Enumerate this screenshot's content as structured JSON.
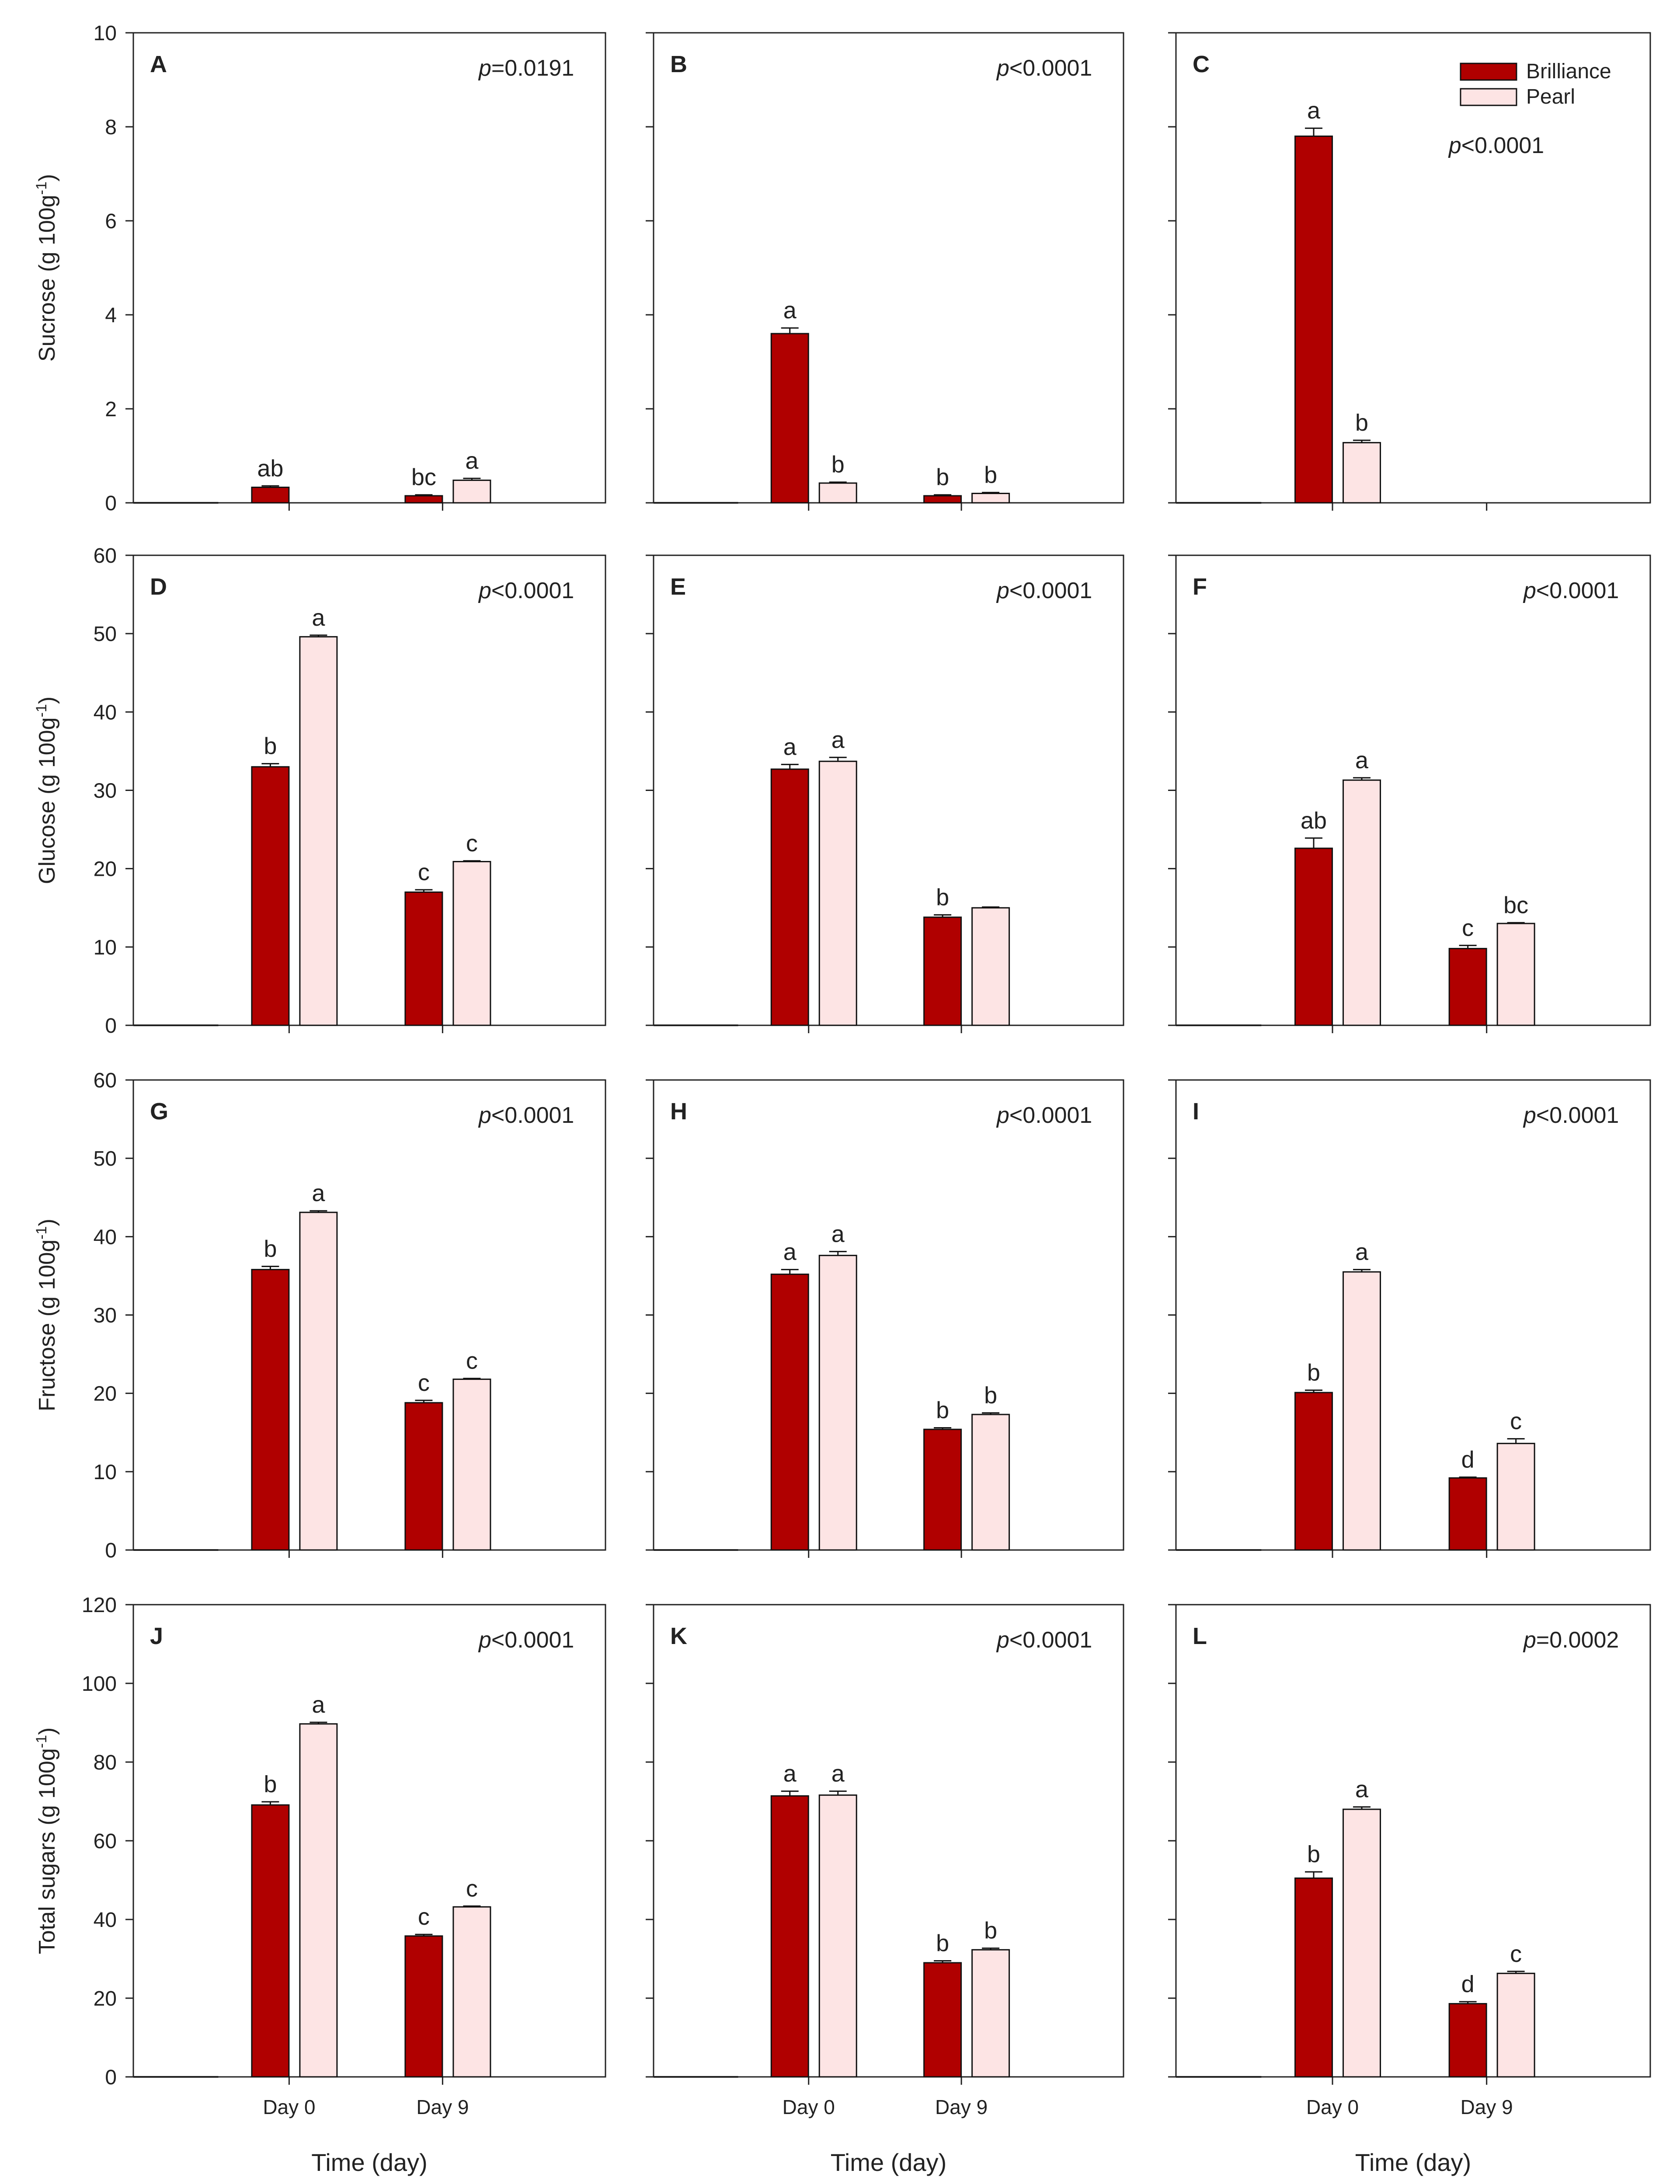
{
  "colors": {
    "brilliance": "#B00000",
    "pearl": "#FDE4E4",
    "axis": "#222222",
    "text": "#222222"
  },
  "legend": {
    "brilliance": "Brilliance",
    "pearl": "Pearl"
  },
  "x_axis": {
    "title": "Time (day)",
    "ticks": [
      "Day 0",
      "Day 9"
    ]
  },
  "rows": [
    {
      "ylabel_text": "Sucrose (g 100g",
      "ylabel_sup": "-1",
      "ylabel_end": ")",
      "ymax": 10,
      "ystep": 2
    },
    {
      "ylabel_text": "Glucose (g 100g",
      "ylabel_sup": "-1",
      "ylabel_end": ")",
      "ymax": 60,
      "ystep": 10
    },
    {
      "ylabel_text": "Fructose (g 100g",
      "ylabel_sup": "-1",
      "ylabel_end": ")",
      "ymax": 60,
      "ystep": 10
    },
    {
      "ylabel_text": "Total sugars (g 100g",
      "ylabel_sup": "-1",
      "ylabel_end": ")",
      "ymax": 120,
      "ystep": 20
    }
  ],
  "chart_data": [
    {
      "type": "bar",
      "panel": "A",
      "p_label": "p",
      "p_value": "=0.0191",
      "categories": [
        "Day 0",
        "Day 9"
      ],
      "ylim": [
        0,
        10
      ],
      "series": [
        {
          "name": "Brilliance",
          "values": [
            0.33,
            0.15
          ],
          "errors": [
            0.03,
            0.02
          ],
          "letters": [
            "ab",
            "bc"
          ]
        },
        {
          "name": "Pearl",
          "values": [
            0,
            0.48
          ],
          "errors": [
            0,
            0.04
          ],
          "letters": [
            "",
            "a"
          ]
        }
      ]
    },
    {
      "type": "bar",
      "panel": "B",
      "p_label": "p",
      "p_value": "<0.0001",
      "categories": [
        "Day 0",
        "Day 9"
      ],
      "ylim": [
        0,
        10
      ],
      "series": [
        {
          "name": "Brilliance",
          "values": [
            3.6,
            0.15
          ],
          "errors": [
            0.12,
            0.02
          ],
          "letters": [
            "a",
            "b"
          ]
        },
        {
          "name": "Pearl",
          "values": [
            0.42,
            0.2
          ],
          "errors": [
            0.02,
            0.02
          ],
          "letters": [
            "b",
            "b"
          ]
        }
      ]
    },
    {
      "type": "bar",
      "panel": "C",
      "p_label": "p",
      "p_value": "<0.0001",
      "categories": [
        "Day 0",
        "Day 9"
      ],
      "ylim": [
        0,
        10
      ],
      "legend": true,
      "series": [
        {
          "name": "Brilliance",
          "values": [
            7.8,
            0
          ],
          "errors": [
            0.17,
            0
          ],
          "letters": [
            "a",
            ""
          ]
        },
        {
          "name": "Pearl",
          "values": [
            1.28,
            0
          ],
          "errors": [
            0.05,
            0
          ],
          "letters": [
            "b",
            ""
          ]
        }
      ]
    },
    {
      "type": "bar",
      "panel": "D",
      "p_label": "p",
      "p_value": "<0.0001",
      "categories": [
        "Day 0",
        "Day 9"
      ],
      "ylim": [
        0,
        60
      ],
      "series": [
        {
          "name": "Brilliance",
          "values": [
            33,
            17
          ],
          "errors": [
            0.4,
            0.3
          ],
          "letters": [
            "b",
            "c"
          ]
        },
        {
          "name": "Pearl",
          "values": [
            49.6,
            20.9
          ],
          "errors": [
            0.2,
            0.1
          ],
          "letters": [
            "a",
            "c"
          ]
        }
      ]
    },
    {
      "type": "bar",
      "panel": "E",
      "p_label": "p",
      "p_value": "<0.0001",
      "categories": [
        "Day 0",
        "Day 9"
      ],
      "ylim": [
        0,
        60
      ],
      "series": [
        {
          "name": "Brilliance",
          "values": [
            32.7,
            13.8
          ],
          "errors": [
            0.6,
            0.3
          ],
          "letters": [
            "a",
            "b"
          ]
        },
        {
          "name": "Pearl",
          "values": [
            33.7,
            15
          ],
          "errors": [
            0.5,
            0.1
          ],
          "letters": [
            "a",
            ""
          ]
        }
      ]
    },
    {
      "type": "bar",
      "panel": "F",
      "p_label": "p",
      "p_value": "<0.0001",
      "categories": [
        "Day 0",
        "Day 9"
      ],
      "ylim": [
        0,
        60
      ],
      "series": [
        {
          "name": "Brilliance",
          "values": [
            22.6,
            9.8
          ],
          "errors": [
            1.3,
            0.4
          ],
          "letters": [
            "ab",
            "c"
          ]
        },
        {
          "name": "Pearl",
          "values": [
            31.3,
            13
          ],
          "errors": [
            0.3,
            0.1
          ],
          "letters": [
            "a",
            "bc"
          ]
        }
      ]
    },
    {
      "type": "bar",
      "panel": "G",
      "p_label": "p",
      "p_value": "<0.0001",
      "categories": [
        "Day 0",
        "Day 9"
      ],
      "ylim": [
        0,
        60
      ],
      "series": [
        {
          "name": "Brilliance",
          "values": [
            35.8,
            18.8
          ],
          "errors": [
            0.4,
            0.3
          ],
          "letters": [
            "b",
            "c"
          ]
        },
        {
          "name": "Pearl",
          "values": [
            43.1,
            21.8
          ],
          "errors": [
            0.2,
            0.1
          ],
          "letters": [
            "a",
            "c"
          ]
        }
      ]
    },
    {
      "type": "bar",
      "panel": "H",
      "p_label": "p",
      "p_value": "<0.0001",
      "categories": [
        "Day 0",
        "Day 9"
      ],
      "ylim": [
        0,
        60
      ],
      "series": [
        {
          "name": "Brilliance",
          "values": [
            35.2,
            15.4
          ],
          "errors": [
            0.6,
            0.2
          ],
          "letters": [
            "a",
            "b"
          ]
        },
        {
          "name": "Pearl",
          "values": [
            37.6,
            17.3
          ],
          "errors": [
            0.5,
            0.2
          ],
          "letters": [
            "a",
            "b"
          ]
        }
      ]
    },
    {
      "type": "bar",
      "panel": "I",
      "p_label": "p",
      "p_value": "<0.0001",
      "categories": [
        "Day 0",
        "Day 9"
      ],
      "ylim": [
        0,
        60
      ],
      "series": [
        {
          "name": "Brilliance",
          "values": [
            20.1,
            9.2
          ],
          "errors": [
            0.3,
            0.1
          ],
          "letters": [
            "b",
            "d"
          ]
        },
        {
          "name": "Pearl",
          "values": [
            35.5,
            13.6
          ],
          "errors": [
            0.3,
            0.6
          ],
          "letters": [
            "a",
            "c"
          ]
        }
      ]
    },
    {
      "type": "bar",
      "panel": "J",
      "p_label": "p",
      "p_value": "<0.0001",
      "categories": [
        "Day 0",
        "Day 9"
      ],
      "ylim": [
        0,
        120
      ],
      "series": [
        {
          "name": "Brilliance",
          "values": [
            69.1,
            35.8
          ],
          "errors": [
            0.8,
            0.4
          ],
          "letters": [
            "b",
            "c"
          ]
        },
        {
          "name": "Pearl",
          "values": [
            89.7,
            43.2
          ],
          "errors": [
            0.4,
            0.2
          ],
          "letters": [
            "a",
            "c"
          ]
        }
      ]
    },
    {
      "type": "bar",
      "panel": "K",
      "p_label": "p",
      "p_value": "<0.0001",
      "categories": [
        "Day 0",
        "Day 9"
      ],
      "ylim": [
        0,
        120
      ],
      "series": [
        {
          "name": "Brilliance",
          "values": [
            71.4,
            29
          ],
          "errors": [
            1.2,
            0.5
          ],
          "letters": [
            "a",
            "b"
          ]
        },
        {
          "name": "Pearl",
          "values": [
            71.6,
            32.3
          ],
          "errors": [
            1.0,
            0.4
          ],
          "letters": [
            "a",
            "b"
          ]
        }
      ]
    },
    {
      "type": "bar",
      "panel": "L",
      "p_label": "p",
      "p_value": "=0.0002",
      "categories": [
        "Day 0",
        "Day 9"
      ],
      "ylim": [
        0,
        120
      ],
      "series": [
        {
          "name": "Brilliance",
          "values": [
            50.5,
            18.6
          ],
          "errors": [
            1.6,
            0.5
          ],
          "letters": [
            "b",
            "d"
          ]
        },
        {
          "name": "Pearl",
          "values": [
            68,
            26.3
          ],
          "errors": [
            0.6,
            0.5
          ],
          "letters": [
            "a",
            "c"
          ]
        }
      ]
    }
  ]
}
